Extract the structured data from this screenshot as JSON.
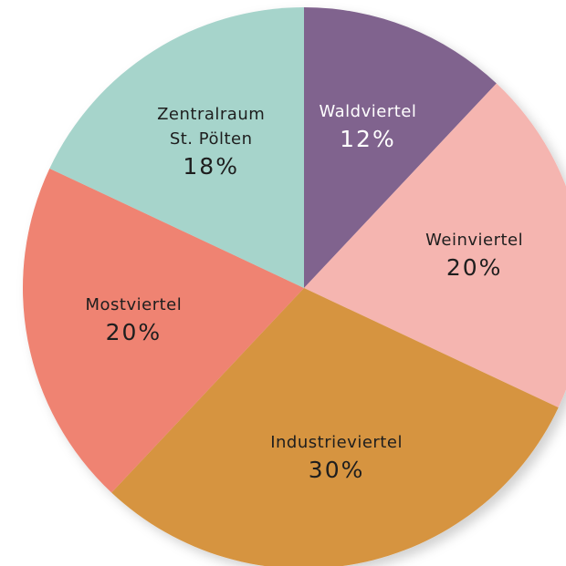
{
  "chart_data": {
    "type": "pie",
    "categories": [
      "Waldviertel",
      "Weinviertel",
      "Industrieviertel",
      "Mostviertel",
      "Zentralraum\nSt. Pölten"
    ],
    "values": [
      12,
      20,
      30,
      20,
      18
    ],
    "value_labels": [
      "12%",
      "20%",
      "30%",
      "20%",
      "18%"
    ],
    "colors": [
      "#80638e",
      "#f5b5b0",
      "#d69440",
      "#ef8372",
      "#a6d4cb"
    ]
  }
}
